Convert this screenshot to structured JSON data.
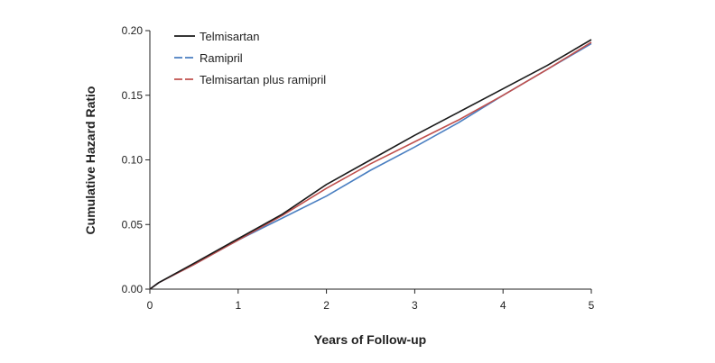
{
  "chart_data": {
    "type": "line",
    "title": "",
    "xlabel": "Years of Follow-up",
    "ylabel": "Cumulative Hazard Ratio",
    "xlim": [
      0,
      5
    ],
    "ylim": [
      0,
      0.2
    ],
    "x_ticks": [
      {
        "value": 0,
        "label": "0"
      },
      {
        "value": 1,
        "label": "1"
      },
      {
        "value": 2,
        "label": "2"
      },
      {
        "value": 3,
        "label": "3"
      },
      {
        "value": 4,
        "label": "4"
      },
      {
        "value": 5,
        "label": "5"
      }
    ],
    "y_ticks": [
      {
        "value": 0,
        "label": "0.00"
      },
      {
        "value": 0.05,
        "label": "0.05"
      },
      {
        "value": 0.1,
        "label": "0.10"
      },
      {
        "value": 0.15,
        "label": "0.15"
      },
      {
        "value": 0.2,
        "label": "0.20"
      }
    ],
    "grid": false,
    "legend_position": "top-left",
    "series": [
      {
        "name": "Telmisartan",
        "color": "#1a1a1a",
        "x": [
          0,
          0.1,
          0.5,
          1.0,
          1.5,
          2.0,
          2.5,
          3.0,
          3.5,
          4.0,
          4.5,
          5.0
        ],
        "y": [
          0,
          0.005,
          0.02,
          0.039,
          0.058,
          0.081,
          0.1,
          0.119,
          0.137,
          0.155,
          0.173,
          0.193
        ]
      },
      {
        "name": "Ramipril",
        "color": "#4a7fc1",
        "x": [
          0,
          0.1,
          0.5,
          1.0,
          1.5,
          2.0,
          2.5,
          3.0,
          3.5,
          4.0,
          4.5,
          5.0
        ],
        "y": [
          0,
          0.005,
          0.019,
          0.038,
          0.055,
          0.072,
          0.092,
          0.11,
          0.129,
          0.15,
          0.17,
          0.19
        ]
      },
      {
        "name": "Telmisartan plus ramipril",
        "color": "#c0504d",
        "x": [
          0,
          0.1,
          0.5,
          1.0,
          1.5,
          2.0,
          2.5,
          3.0,
          3.5,
          4.0,
          4.5,
          5.0
        ],
        "y": [
          0,
          0.005,
          0.019,
          0.038,
          0.057,
          0.078,
          0.097,
          0.114,
          0.131,
          0.15,
          0.17,
          0.191
        ]
      }
    ]
  }
}
